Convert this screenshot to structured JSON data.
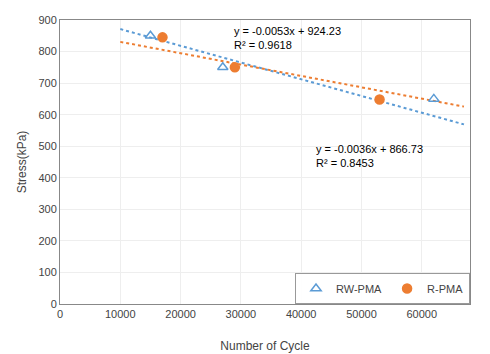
{
  "chart_data": {
    "type": "scatter",
    "xlabel": "Number of Cycle",
    "ylabel": "Stress(kPa)",
    "xlim": [
      0,
      68000
    ],
    "ylim": [
      0,
      900
    ],
    "xticks": [
      0,
      10000,
      20000,
      30000,
      40000,
      50000,
      60000
    ],
    "yticks": [
      0,
      100,
      200,
      300,
      400,
      500,
      600,
      700,
      800,
      900
    ],
    "grid": true,
    "legend": "lower right",
    "series": [
      {
        "type": "line",
        "line_style": "dotted",
        "color": "#5B9BD5",
        "x": [
          10000,
          67000
        ],
        "values": [
          871.23,
          569.13
        ]
      },
      {
        "type": "line",
        "line_style": "dotted",
        "color": "#ED7D31",
        "x": [
          10000,
          67000
        ],
        "values": [
          830.73,
          625.53
        ]
      },
      {
        "name": "RW-PMA",
        "type": "scatter",
        "marker": "triangle_open",
        "color": "#5B9BD5",
        "x": [
          15000,
          27000,
          62000
        ],
        "values": [
          850,
          750,
          650
        ]
      },
      {
        "name": "R-PMA",
        "type": "scatter",
        "marker": "circle",
        "color": "#ED7D31",
        "x": [
          17000,
          29000,
          53000
        ],
        "values": [
          845,
          750,
          648
        ]
      }
    ],
    "annotations": [
      [
        "y = -0.0053x + 924.23",
        "R² = 0.9618"
      ],
      [
        "y = -0.0036x + 866.73",
        "R² = 0.8453"
      ]
    ]
  }
}
